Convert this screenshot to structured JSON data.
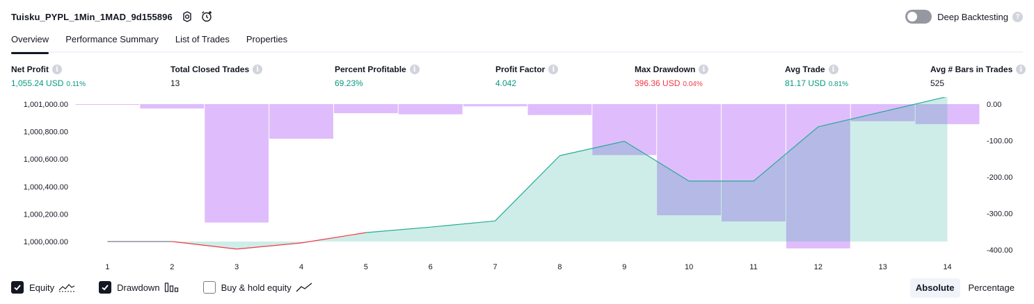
{
  "header": {
    "strategy_name": "Tuisku_PYPL_1Min_1MAD_9d155896",
    "deep_backtesting_label": "Deep Backtesting",
    "deep_backtesting_enabled": false
  },
  "tabs": [
    {
      "label": "Overview",
      "active": true
    },
    {
      "label": "Performance Summary",
      "active": false
    },
    {
      "label": "List of Trades",
      "active": false
    },
    {
      "label": "Properties",
      "active": false
    }
  ],
  "metrics": [
    {
      "label": "Net Profit",
      "value": "1,055.24 USD",
      "sub": "0.11%",
      "tone": "pos"
    },
    {
      "label": "Total Closed Trades",
      "value": "13",
      "sub": "",
      "tone": "neutral"
    },
    {
      "label": "Percent Profitable",
      "value": "69.23%",
      "sub": "",
      "tone": "pos"
    },
    {
      "label": "Profit Factor",
      "value": "4.042",
      "sub": "",
      "tone": "pos"
    },
    {
      "label": "Max Drawdown",
      "value": "396.36 USD",
      "sub": "0.04%",
      "tone": "neg"
    },
    {
      "label": "Avg Trade",
      "value": "81.17 USD",
      "sub": "0.81%",
      "tone": "pos"
    },
    {
      "label": "Avg # Bars in Trades",
      "value": "525",
      "sub": "",
      "tone": "neutral"
    }
  ],
  "chart_data": {
    "type": "area",
    "x": [
      1,
      2,
      3,
      4,
      5,
      6,
      7,
      8,
      9,
      10,
      11,
      12,
      13,
      14
    ],
    "left_axis": {
      "ticks": [
        "1,001,000.00",
        "1,000,800.00",
        "1,000,600.00",
        "1,000,400.00",
        "1,000,200.00",
        "1,000,000.00"
      ],
      "min": 1000000,
      "max": 1001000
    },
    "right_axis": {
      "ticks": [
        "0.00",
        "-100.00",
        "-200.00",
        "-300.00",
        "-400.00"
      ],
      "min": -400,
      "max": 0
    },
    "series": [
      {
        "name": "Equity",
        "values": [
          1000000,
          1000000,
          999945,
          999990,
          1000065,
          1000105,
          1000150,
          1000625,
          1000730,
          1000440,
          1000440,
          1000835,
          1000945,
          1001055
        ]
      },
      {
        "name": "Drawdown",
        "values": [
          -2,
          -12,
          -325,
          -95,
          -25,
          -28,
          -6,
          -30,
          -140,
          -305,
          -322,
          -396,
          -47,
          -55
        ]
      }
    ],
    "colors": {
      "equity_line": "#22ab94",
      "equity_fill": "#22ab94",
      "equity_negative": "#f23645",
      "drawdown_bar": "#d9b2fb"
    }
  },
  "legend": [
    {
      "label": "Equity",
      "checked": true,
      "icon": "equity-icon"
    },
    {
      "label": "Drawdown",
      "checked": true,
      "icon": "drawdown-icon"
    },
    {
      "label": "Buy & hold equity",
      "checked": false,
      "icon": "buy-hold-icon"
    }
  ],
  "mode": {
    "options": [
      "Absolute",
      "Percentage"
    ],
    "selected": "Absolute"
  }
}
